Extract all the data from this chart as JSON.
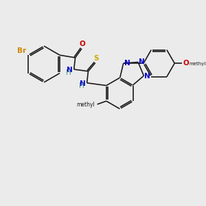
{
  "background_color": "#ebebeb",
  "bond_color": "#1a1a1a",
  "figsize": [
    3.0,
    3.0
  ],
  "dpi": 100,
  "colors": {
    "Br": "#cc8800",
    "O": "#cc0000",
    "N": "#0000cc",
    "S": "#ccaa00",
    "H": "#448888",
    "C": "#1a1a1a"
  },
  "fontsize": 7.5
}
